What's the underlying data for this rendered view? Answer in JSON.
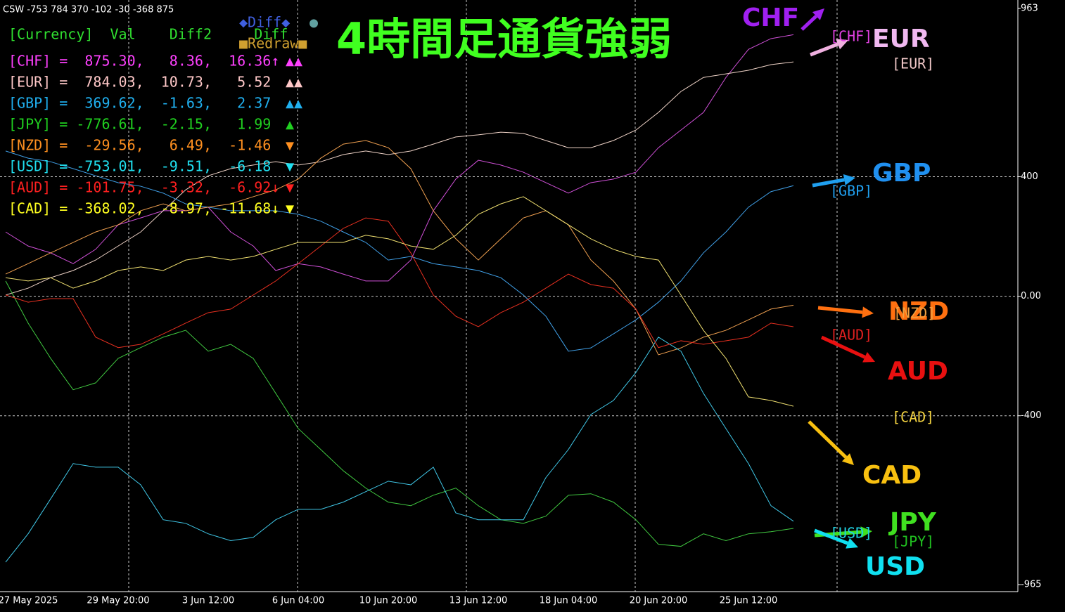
{
  "chart_data": {
    "type": "line",
    "caption": "CSW -753 784 370 -102 -30 -368 875",
    "title": "4時間足通貨強弱",
    "categories": [
      null,
      "27 May 2025",
      null,
      null,
      null,
      "29 May 20:00",
      null,
      null,
      null,
      "3 Jun 12:00",
      null,
      null,
      null,
      "6 Jun 04:00",
      null,
      null,
      null,
      "10 Jun 20:00",
      null,
      null,
      null,
      "13 Jun 12:00",
      null,
      null,
      null,
      "18 Jun 04:00",
      null,
      null,
      null,
      "20 Jun 20:00",
      null,
      null,
      null,
      "25 Jun 12:00",
      null,
      null
    ],
    "series": [
      {
        "name": "CHF",
        "color": "#d050d8",
        "values": [
          215,
          168,
          145,
          109,
          157,
          239,
          262,
          286,
          286,
          298,
          215,
          168,
          86,
          109,
          98,
          74,
          51,
          51,
          121,
          286,
          392,
          455,
          439,
          415,
          380,
          345,
          380,
          392,
          415,
          497,
          556,
          615,
          732,
          826,
          862,
          875
        ]
      },
      {
        "name": "EUR",
        "color": "#f0d4c8",
        "values": [
          4,
          27,
          62,
          86,
          121,
          168,
          215,
          286,
          356,
          403,
          427,
          439,
          450,
          439,
          450,
          474,
          486,
          474,
          486,
          509,
          533,
          540,
          549,
          545,
          521,
          497,
          497,
          521,
          556,
          615,
          685,
          732,
          744,
          756,
          775,
          784
        ]
      },
      {
        "name": "GBP",
        "color": "#40a0e8",
        "values": [
          486,
          462,
          450,
          427,
          403,
          380,
          368,
          345,
          309,
          298,
          286,
          286,
          286,
          274,
          251,
          215,
          180,
          121,
          133,
          109,
          98,
          86,
          62,
          4,
          -67,
          -184,
          -173,
          -126,
          -79,
          -20,
          51,
          145,
          215,
          298,
          350,
          370
        ]
      },
      {
        "name": "JPY",
        "color": "#40c840",
        "values": [
          51,
          -90,
          -208,
          -313,
          -290,
          -208,
          -172,
          -137,
          -114,
          -184,
          -161,
          -208,
          -325,
          -443,
          -513,
          -584,
          -642,
          -689,
          -701,
          -666,
          -642,
          -701,
          -748,
          -760,
          -736,
          -666,
          -661,
          -689,
          -748,
          -830,
          -837,
          -795,
          -818,
          -795,
          -788,
          -777
        ]
      },
      {
        "name": "NZD",
        "color": "#f0a050",
        "values": [
          74,
          109,
          145,
          180,
          215,
          239,
          286,
          309,
          286,
          298,
          309,
          333,
          356,
          392,
          462,
          509,
          521,
          497,
          427,
          286,
          192,
          121,
          192,
          262,
          286,
          239,
          121,
          51,
          -43,
          -196,
          -173,
          -137,
          -114,
          -79,
          -43,
          -30
        ]
      },
      {
        "name": "USD",
        "color": "#40c8e8",
        "values": [
          -890,
          -795,
          -678,
          -560,
          -572,
          -572,
          -631,
          -748,
          -760,
          -795,
          -818,
          -807,
          -748,
          -713,
          -713,
          -689,
          -654,
          -619,
          -631,
          -572,
          -725,
          -748,
          -748,
          -748,
          -607,
          -513,
          -396,
          -349,
          -255,
          -137,
          -184,
          -325,
          -443,
          -560,
          -701,
          -753
        ]
      },
      {
        "name": "AUD",
        "color": "#e83020",
        "values": [
          4,
          -20,
          -8,
          -8,
          -137,
          -172,
          -161,
          -126,
          -90,
          -55,
          -43,
          4,
          51,
          109,
          168,
          227,
          262,
          251,
          145,
          4,
          -67,
          -102,
          -55,
          -20,
          27,
          74,
          39,
          27,
          -43,
          -172,
          -149,
          -161,
          -149,
          -137,
          -90,
          -102
        ]
      },
      {
        "name": "CAD",
        "color": "#f0e070",
        "values": [
          62,
          51,
          62,
          27,
          51,
          86,
          98,
          86,
          121,
          133,
          121,
          133,
          157,
          180,
          180,
          180,
          204,
          192,
          168,
          157,
          204,
          274,
          309,
          333,
          286,
          239,
          192,
          157,
          133,
          121,
          4,
          -114,
          -208,
          -337,
          -349,
          -368
        ]
      }
    ],
    "ylim": [
      -965,
      963
    ],
    "yticks": [
      963,
      400,
      {
        "value": 0,
        "label": "0.00"
      },
      -400,
      -965
    ],
    "grid": true,
    "panel": {
      "diff_button": "◆Diff◆",
      "dot": "●",
      "redraw_button": "■Redraw■",
      "header": "[Currency]  Val    Diff2     Diff",
      "rows": [
        {
          "text": "[CHF] =  875.30,   8.36,  16.36↑",
          "signs": "▲▲",
          "color": "#ff40ff"
        },
        {
          "text": "[EUR] =  784.03,  10.73,   5.52",
          "signs": "▲▲",
          "color": "#ffc8c8"
        },
        {
          "text": "[GBP] =  369.62,  -1.63,   2.37",
          "signs": "▲▲",
          "color": "#20b0f0"
        },
        {
          "text": "[JPY] = -776.61,  -2.15,   1.99",
          "signs": "▲",
          "color": "#20d020"
        },
        {
          "text": "[NZD] =  -29.56,   6.49,  -1.46",
          "signs": "▼",
          "color": "#ff9020"
        },
        {
          "text": "[USD] = -753.01,  -9.51,  -6.18",
          "signs": "▼",
          "color": "#20e0f0"
        },
        {
          "text": "[AUD] = -101.75,  -3.32,  -6.92↓",
          "signs": "▼",
          "color": "#ff2020"
        },
        {
          "text": "[CAD] = -368.02,  -8.97, -11.68↓",
          "signs": "▼",
          "color": "#ffff20"
        }
      ]
    },
    "annotations": [
      {
        "text": "CHF",
        "color": "#a020f0"
      },
      {
        "text": "[CHF]",
        "color": "#e040e0"
      },
      {
        "text": "EUR",
        "color": "#f0b8f0"
      },
      {
        "text": "[EUR]",
        "color": "#f0c8c8"
      },
      {
        "text": "GBP",
        "color": "#2090f0"
      },
      {
        "text": "[GBP]",
        "color": "#20a0f0"
      },
      {
        "text": "NZD",
        "color": "#ff7010"
      },
      {
        "text": "[NZD]",
        "color": "#f0a040"
      },
      {
        "text": "[AUD]",
        "color": "#e02020"
      },
      {
        "text": "AUD",
        "color": "#e81010"
      },
      {
        "text": "[CAD]",
        "color": "#f0d040"
      },
      {
        "text": "CAD",
        "color": "#f8c010"
      },
      {
        "text": "JPY",
        "color": "#40e020"
      },
      {
        "text": "[JPY]",
        "color": "#20c020"
      },
      {
        "text": "[USD]",
        "color": "#20d0e0"
      },
      {
        "text": "USD",
        "color": "#10e0f0"
      }
    ]
  }
}
